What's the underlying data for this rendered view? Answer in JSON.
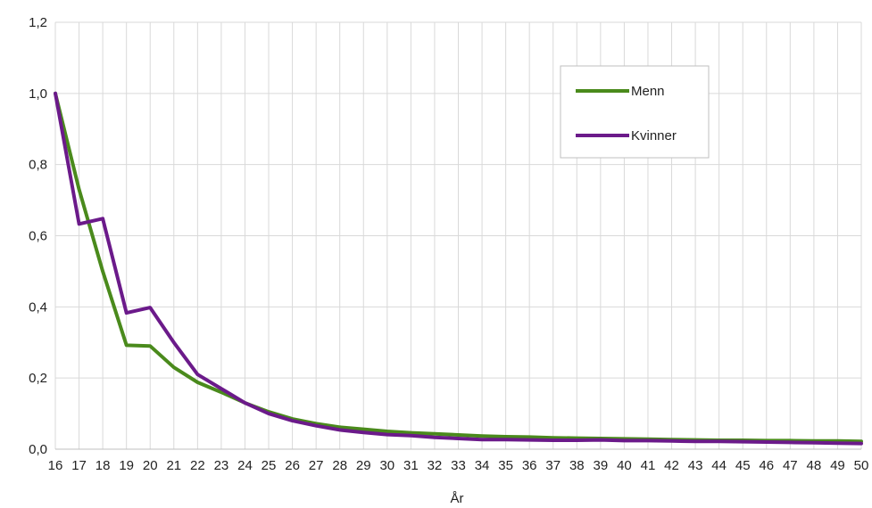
{
  "chart_data": {
    "type": "line",
    "title": "",
    "xlabel": "År",
    "ylabel": "",
    "x": [
      16,
      17,
      18,
      19,
      20,
      21,
      22,
      23,
      24,
      25,
      26,
      27,
      28,
      29,
      30,
      31,
      32,
      33,
      34,
      35,
      36,
      37,
      38,
      39,
      40,
      41,
      42,
      43,
      44,
      45,
      46,
      47,
      48,
      49,
      50
    ],
    "ylim": [
      0,
      1.2
    ],
    "yticks": [
      "0,0",
      "0,2",
      "0,4",
      "0,6",
      "0,8",
      "1,0",
      "1,2"
    ],
    "grid": true,
    "legend": "top-right",
    "series": [
      {
        "name": "Menn",
        "color": "#4a8a1c",
        "values": [
          1.0,
          0.73,
          0.5,
          0.292,
          0.29,
          0.23,
          0.188,
          0.16,
          0.13,
          0.105,
          0.085,
          0.072,
          0.062,
          0.056,
          0.05,
          0.046,
          0.043,
          0.04,
          0.037,
          0.035,
          0.034,
          0.032,
          0.031,
          0.03,
          0.029,
          0.028,
          0.027,
          0.026,
          0.025,
          0.025,
          0.024,
          0.024,
          0.023,
          0.023,
          0.022
        ]
      },
      {
        "name": "Kvinner",
        "color": "#6b1a8a",
        "values": [
          1.0,
          0.633,
          0.648,
          0.383,
          0.398,
          0.3,
          0.21,
          0.17,
          0.13,
          0.1,
          0.08,
          0.066,
          0.054,
          0.047,
          0.041,
          0.038,
          0.033,
          0.03,
          0.027,
          0.027,
          0.026,
          0.025,
          0.025,
          0.026,
          0.024,
          0.024,
          0.023,
          0.022,
          0.022,
          0.021,
          0.02,
          0.019,
          0.018,
          0.017,
          0.016
        ]
      }
    ]
  }
}
